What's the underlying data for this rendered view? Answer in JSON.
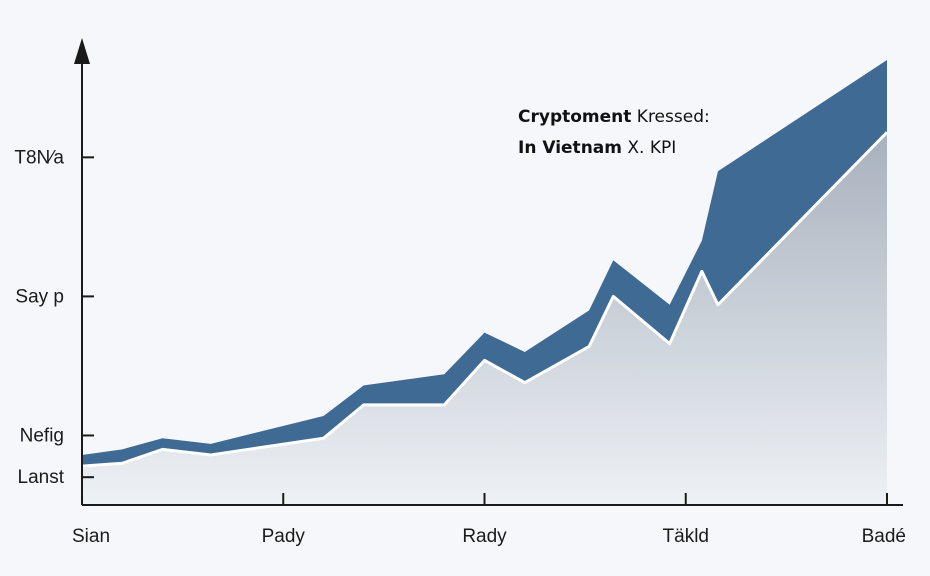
{
  "chart_data": {
    "type": "area",
    "title": "",
    "xlabel": "",
    "ylabel": "",
    "x_ticks": [
      "Sian",
      "Pady",
      "Rady",
      "Täkld",
      "Badé"
    ],
    "y_ticks": [
      "Lanst",
      "Nefig",
      "Say p",
      "T8N⁄a"
    ],
    "y_tick_values": [
      0.1,
      0.25,
      0.75,
      1.25
    ],
    "xlim": [
      0,
      1
    ],
    "ylim": [
      0,
      1.6
    ],
    "annotation": {
      "line1_bold": "Cryptoment",
      "line1_rest": " Kressed:",
      "line2_bold": "In Vietnam",
      "line2_rest": " X. KPI"
    },
    "series": [
      {
        "x": [
          0,
          0.05,
          0.1,
          0.16,
          0.3,
          0.35,
          0.45,
          0.5,
          0.55,
          0.63,
          0.66,
          0.73,
          0.77,
          0.79,
          1
        ],
        "values": [
          0.18,
          0.2,
          0.24,
          0.22,
          0.32,
          0.43,
          0.47,
          0.62,
          0.55,
          0.7,
          0.88,
          0.72,
          0.95,
          1.2,
          1.6
        ]
      },
      {
        "x": [
          0,
          0.05,
          0.1,
          0.16,
          0.3,
          0.35,
          0.45,
          0.5,
          0.55,
          0.63,
          0.66,
          0.73,
          0.77,
          0.79,
          1
        ],
        "values": [
          0.14,
          0.15,
          0.2,
          0.18,
          0.24,
          0.36,
          0.36,
          0.52,
          0.44,
          0.57,
          0.75,
          0.58,
          0.84,
          0.72,
          1.34
        ]
      }
    ],
    "colors": {
      "upper_band": "#3f6a94",
      "lower_area_top": "#a7b1bd",
      "lower_area_bottom": "#eef1f5",
      "highlight_line": "#ffffff",
      "axis": "#1a1a1a"
    },
    "grid": false
  }
}
